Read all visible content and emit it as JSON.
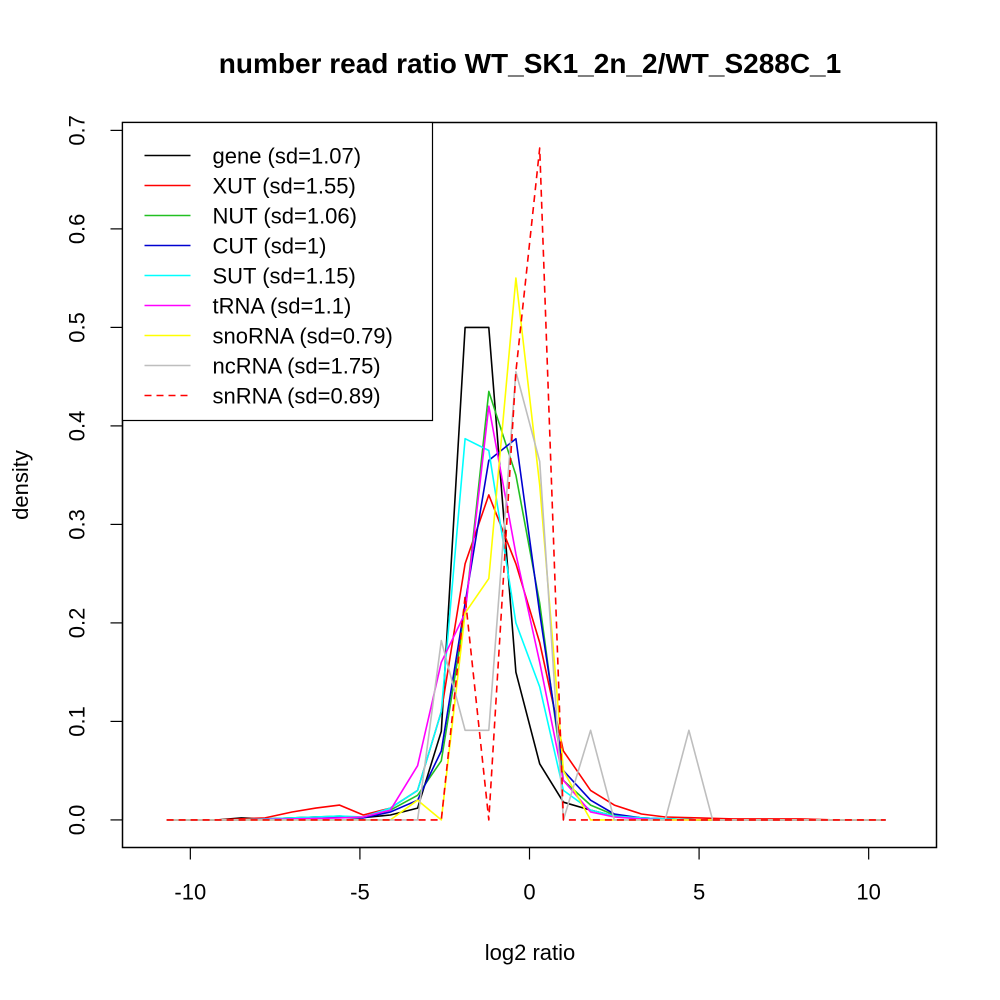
{
  "chart_data": {
    "type": "line",
    "title": "number read ratio WT_SK1_2n_2/WT_S288C_1",
    "xlabel": "log2 ratio",
    "ylabel": "density",
    "xlim": [
      -12,
      12
    ],
    "ylim": [
      -0.028,
      0.708
    ],
    "x_ticks": [
      -10,
      -5,
      0,
      5,
      10
    ],
    "x_tick_labels": [
      "-10",
      "-5",
      "0",
      "5",
      "10"
    ],
    "y_ticks": [
      0.0,
      0.1,
      0.2,
      0.3,
      0.4,
      0.5,
      0.6,
      0.7
    ],
    "y_tick_labels": [
      "0.0",
      "0.1",
      "0.2",
      "0.3",
      "0.4",
      "0.5",
      "0.6",
      "0.7"
    ],
    "grid": false,
    "legend_position": "top-left",
    "series": [
      {
        "name": "gene (sd=1.07)",
        "color": "#000000",
        "dashed": false,
        "x": [
          -10.7,
          -9.2,
          -8.5,
          -7.8,
          -6.3,
          -5.0,
          -4.1,
          -3.3,
          -2.6,
          -1.9,
          -1.2,
          -0.4,
          0.3,
          1.0,
          1.8,
          2.5,
          3.3,
          4.0,
          5.0,
          6.0,
          7.0,
          8.0,
          9.0,
          10.5
        ],
        "y": [
          0.0,
          0.0,
          0.002,
          0.001,
          0.003,
          0.002,
          0.005,
          0.012,
          0.09,
          0.5,
          0.5,
          0.15,
          0.057,
          0.018,
          0.01,
          0.004,
          0.002,
          0.001,
          0.0,
          0.0,
          0.0,
          0.0,
          0.0,
          0.0
        ]
      },
      {
        "name": "XUT (sd=1.55)",
        "color": "#ff0000",
        "dashed": false,
        "x": [
          -10.7,
          -9.2,
          -7.8,
          -7.0,
          -6.3,
          -5.6,
          -4.9,
          -4.1,
          -3.3,
          -2.6,
          -1.9,
          -1.2,
          -0.4,
          0.3,
          1.0,
          1.8,
          2.5,
          3.3,
          4.0,
          5.0,
          6.0,
          7.0,
          8.0,
          9.0,
          10.5
        ],
        "y": [
          0.0,
          0.0,
          0.002,
          0.008,
          0.012,
          0.015,
          0.005,
          0.012,
          0.03,
          0.11,
          0.26,
          0.33,
          0.26,
          0.18,
          0.07,
          0.03,
          0.015,
          0.006,
          0.003,
          0.002,
          0.001,
          0.001,
          0.001,
          0.0,
          0.0
        ]
      },
      {
        "name": "NUT (sd=1.06)",
        "color": "#22c022",
        "dashed": false,
        "x": [
          -10.7,
          -8.5,
          -7.0,
          -6.3,
          -5.6,
          -4.9,
          -4.1,
          -3.3,
          -2.6,
          -1.9,
          -1.2,
          -0.4,
          0.3,
          1.0,
          1.8,
          2.5,
          3.3,
          4.0,
          5.0,
          6.0,
          7.0,
          8.0,
          10.5
        ],
        "y": [
          0.0,
          0.0,
          0.002,
          0.003,
          0.004,
          0.002,
          0.01,
          0.025,
          0.06,
          0.21,
          0.435,
          0.35,
          0.22,
          0.04,
          0.015,
          0.005,
          0.002,
          0.001,
          0.0,
          0.0,
          0.0,
          0.0,
          0.0
        ]
      },
      {
        "name": "CUT (sd=1)",
        "color": "#0000d0",
        "dashed": false,
        "x": [
          -10.7,
          -8.5,
          -7.0,
          -5.6,
          -4.9,
          -4.1,
          -3.3,
          -2.6,
          -1.9,
          -1.2,
          -0.4,
          0.3,
          1.0,
          1.8,
          2.5,
          3.3,
          4.0,
          5.0,
          6.0,
          7.0,
          10.5
        ],
        "y": [
          0.0,
          0.0,
          0.001,
          0.003,
          0.002,
          0.008,
          0.02,
          0.07,
          0.22,
          0.365,
          0.387,
          0.21,
          0.05,
          0.02,
          0.006,
          0.002,
          0.001,
          0.0,
          0.0,
          0.0,
          0.0
        ]
      },
      {
        "name": "SUT (sd=1.15)",
        "color": "#00ffff",
        "dashed": false,
        "x": [
          -10.7,
          -8.5,
          -7.0,
          -5.6,
          -4.9,
          -4.1,
          -3.3,
          -2.6,
          -1.9,
          -1.2,
          -0.4,
          0.3,
          1.0,
          1.8,
          2.5,
          3.3,
          4.0,
          5.0,
          6.0,
          7.0,
          10.5
        ],
        "y": [
          0.0,
          0.0,
          0.002,
          0.004,
          0.003,
          0.012,
          0.03,
          0.11,
          0.387,
          0.375,
          0.2,
          0.135,
          0.03,
          0.01,
          0.004,
          0.002,
          0.001,
          0.0,
          0.0,
          0.0,
          0.0
        ]
      },
      {
        "name": "tRNA (sd=1.1)",
        "color": "#ff00ff",
        "dashed": false,
        "x": [
          -10.7,
          -8.5,
          -7.0,
          -5.6,
          -4.9,
          -4.1,
          -3.3,
          -2.6,
          -1.9,
          -1.2,
          -0.4,
          0.3,
          1.0,
          1.8,
          2.5,
          3.3,
          4.0,
          5.0,
          10.5
        ],
        "y": [
          0.0,
          0.0,
          0.001,
          0.002,
          0.003,
          0.01,
          0.055,
          0.16,
          0.21,
          0.42,
          0.27,
          0.16,
          0.04,
          0.008,
          0.003,
          0.001,
          0.0,
          0.0,
          0.0
        ]
      },
      {
        "name": "snoRNA (sd=0.79)",
        "color": "#ffff00",
        "dashed": false,
        "x": [
          -10.7,
          -8.5,
          -7.0,
          -5.6,
          -4.1,
          -3.3,
          -2.6,
          -1.9,
          -1.2,
          -0.4,
          0.3,
          1.0,
          1.8,
          2.5,
          3.3,
          5.0,
          10.5
        ],
        "y": [
          0.0,
          0.0,
          0.0,
          0.0,
          0.0,
          0.02,
          0.0,
          0.21,
          0.245,
          0.55,
          0.34,
          0.05,
          0.0,
          0.0,
          0.0,
          0.0,
          0.0
        ]
      },
      {
        "name": "ncRNA (sd=1.75)",
        "color": "#bebebe",
        "dashed": false,
        "x": [
          -10.7,
          -8.5,
          -7.0,
          -5.6,
          -4.1,
          -3.3,
          -2.6,
          -1.9,
          -1.2,
          -0.4,
          0.3,
          1.0,
          1.8,
          2.5,
          3.3,
          4.0,
          4.7,
          5.4,
          6.0,
          7.0,
          8.0,
          10.5
        ],
        "y": [
          0.0,
          0.0,
          0.0,
          0.0,
          0.0,
          0.0,
          0.182,
          0.091,
          0.091,
          0.455,
          0.364,
          0.0,
          0.091,
          0.0,
          0.0,
          0.0,
          0.091,
          0.0,
          0.0,
          0.0,
          0.0,
          0.0
        ]
      },
      {
        "name": "snRNA (sd=0.89)",
        "color": "#ff0000",
        "dashed": true,
        "x": [
          -10.7,
          -8.5,
          -7.0,
          -5.6,
          -4.1,
          -3.3,
          -2.6,
          -1.9,
          -1.2,
          -0.4,
          0.3,
          1.0,
          1.8,
          2.5,
          3.3,
          5.0,
          10.5
        ],
        "y": [
          0.0,
          0.0,
          0.0,
          0.0,
          0.0,
          0.0,
          0.0,
          0.227,
          0.0,
          0.455,
          0.682,
          0.0,
          0.0,
          0.0,
          0.0,
          0.0,
          0.0
        ]
      }
    ]
  }
}
